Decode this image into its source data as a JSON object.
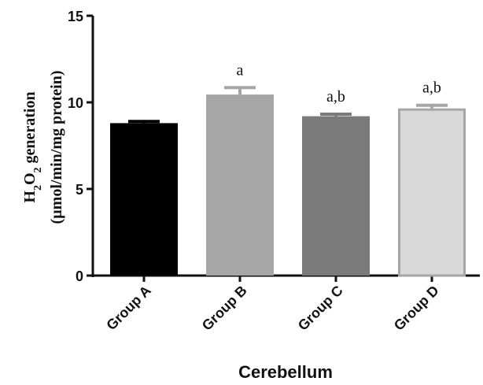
{
  "chart_data": {
    "type": "bar",
    "categories": [
      "Group A",
      "Group B",
      "Group C",
      "Group D"
    ],
    "values": [
      8.8,
      10.45,
      9.2,
      9.65
    ],
    "errors": [
      0.1,
      0.4,
      0.12,
      0.18
    ],
    "annotations": [
      "",
      "a",
      "a,b",
      "a,b"
    ],
    "colors": [
      "#000000",
      "#a6a6a6",
      "#7a7a7a",
      "#d9d9d9"
    ],
    "edge_colors": [
      "#000000",
      "#a6a6a6",
      "#7a7a7a",
      "#a6a6a6"
    ],
    "ylim": [
      0,
      15
    ],
    "yticks": [
      0,
      5,
      10,
      15
    ],
    "xlabel": "Cerebellum",
    "ylabel_line1_main": "H",
    "ylabel_line1_sub1": "2",
    "ylabel_line1_mid": "O",
    "ylabel_line1_sub2": "2",
    "ylabel_line1_tail": " generation",
    "ylabel_line2": "(µmol/min/mg protein)",
    "grid": false,
    "legend": "none"
  }
}
